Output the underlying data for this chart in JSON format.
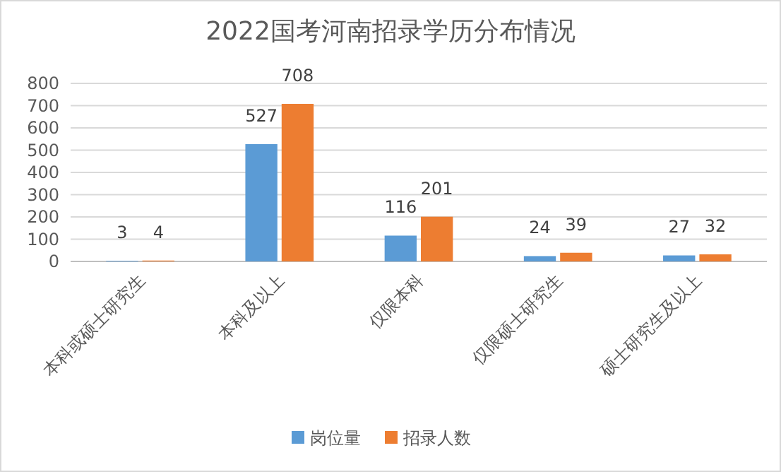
{
  "chart_data": {
    "type": "bar",
    "title": "2022国考河南招录学历分布情况",
    "categories": [
      "本科或硕士研究生",
      "本科及以上",
      "仅限本科",
      "仅限硕士研究生",
      "硕士研究生及以上"
    ],
    "series": [
      {
        "name": "岗位量",
        "color": "#5b9bd5",
        "values": [
          3,
          527,
          116,
          24,
          27
        ]
      },
      {
        "name": "招录人数",
        "color": "#ed7d31",
        "values": [
          4,
          708,
          201,
          39,
          32
        ]
      }
    ],
    "ylim": [
      0,
      800
    ],
    "yticks": [
      0,
      100,
      200,
      300,
      400,
      500,
      600,
      700,
      800
    ],
    "grid": "y",
    "legend": "bottom",
    "data_labels": true
  }
}
